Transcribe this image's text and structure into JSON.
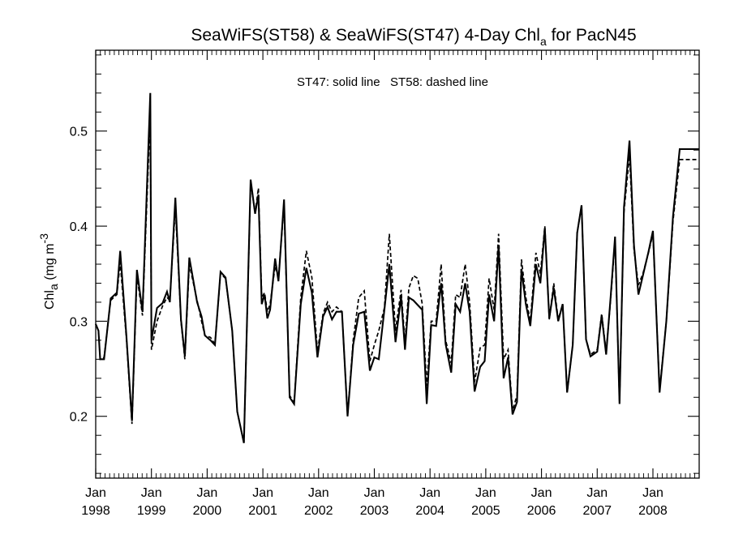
{
  "chart_data": {
    "type": "line",
    "title": {
      "main": "SeaWiFS(ST58) & SeaWiFS(ST47) 4-Day Chl",
      "sub": "a",
      "tail": " for PacN45"
    },
    "annotation": "ST47: solid line   ST58: dashed line",
    "ylabel": {
      "main": "Chl",
      "sub": "a",
      "unit_open": " (mg m",
      "sup": "-3",
      "unit_close": ")"
    },
    "xlim": [
      1998.0,
      2008.83
    ],
    "ylim": [
      0.135,
      0.585
    ],
    "y_ticks": [
      0.2,
      0.3,
      0.4,
      0.5
    ],
    "y_tick_labels": [
      "0.2",
      "0.3",
      "0.4",
      "0.5"
    ],
    "x_ticks": [
      {
        "value": 1998,
        "month": "Jan",
        "year": "1998"
      },
      {
        "value": 1999,
        "month": "Jan",
        "year": "1999"
      },
      {
        "value": 2000,
        "month": "Jan",
        "year": "2000"
      },
      {
        "value": 2001,
        "month": "Jan",
        "year": "2001"
      },
      {
        "value": 2002,
        "month": "Jan",
        "year": "2002"
      },
      {
        "value": 2003,
        "month": "Jan",
        "year": "2003"
      },
      {
        "value": 2004,
        "month": "Jan",
        "year": "2004"
      },
      {
        "value": 2005,
        "month": "Jan",
        "year": "2005"
      },
      {
        "value": 2006,
        "month": "Jan",
        "year": "2006"
      },
      {
        "value": 2007,
        "month": "Jan",
        "year": "2007"
      },
      {
        "value": 2008,
        "month": "Jan",
        "year": "2008"
      }
    ],
    "series": [
      {
        "name": "ST47",
        "style": "solid",
        "color": "#000000",
        "x": [
          1998.0,
          1998.05,
          1998.08,
          1998.15,
          1998.27,
          1998.38,
          1998.44,
          1998.55,
          1998.65,
          1998.74,
          1998.84,
          1998.98,
          1999.0,
          1999.1,
          1999.2,
          1999.28,
          1999.33,
          1999.43,
          1999.53,
          1999.6,
          1999.68,
          1999.82,
          1999.9,
          1999.96,
          2000.06,
          2000.14,
          2000.24,
          2000.33,
          2000.45,
          2000.54,
          2000.66,
          2000.78,
          2000.86,
          2000.92,
          2000.98,
          2001.03,
          2001.08,
          2001.13,
          2001.22,
          2001.28,
          2001.38,
          2001.48,
          2001.56,
          2001.68,
          2001.78,
          2001.88,
          2001.98,
          2002.08,
          2002.16,
          2002.24,
          2002.32,
          2002.42,
          2002.52,
          2002.62,
          2002.72,
          2002.82,
          2002.92,
          2003.0,
          2003.08,
          2003.18,
          2003.27,
          2003.38,
          2003.48,
          2003.55,
          2003.62,
          2003.7,
          2003.78,
          2003.86,
          2003.94,
          2004.02,
          2004.11,
          2004.2,
          2004.28,
          2004.38,
          2004.46,
          2004.54,
          2004.63,
          2004.71,
          2004.8,
          2004.9,
          2004.98,
          2005.06,
          2005.15,
          2005.23,
          2005.32,
          2005.4,
          2005.48,
          2005.56,
          2005.64,
          2005.72,
          2005.8,
          2005.9,
          2005.98,
          2006.06,
          2006.14,
          2006.22,
          2006.3,
          2006.38,
          2006.46,
          2006.56,
          2006.64,
          2006.72,
          2006.8,
          2006.88,
          2007.0,
          2007.08,
          2007.16,
          2007.24,
          2007.32,
          2007.4,
          2007.48,
          2007.58,
          2007.66,
          2007.74,
          2007.82,
          2007.92,
          2008.0,
          2008.12,
          2008.24,
          2008.36,
          2008.48,
          2008.6,
          2008.7,
          2008.83
        ],
        "y": [
          0.297,
          0.29,
          0.26,
          0.26,
          0.324,
          0.33,
          0.374,
          0.285,
          0.195,
          0.354,
          0.31,
          0.54,
          0.28,
          0.314,
          0.319,
          0.331,
          0.32,
          0.43,
          0.302,
          0.263,
          0.367,
          0.32,
          0.305,
          0.285,
          0.28,
          0.275,
          0.352,
          0.346,
          0.29,
          0.205,
          0.172,
          0.449,
          0.413,
          0.433,
          0.318,
          0.328,
          0.303,
          0.312,
          0.366,
          0.342,
          0.428,
          0.22,
          0.213,
          0.318,
          0.356,
          0.33,
          0.262,
          0.305,
          0.315,
          0.302,
          0.31,
          0.31,
          0.2,
          0.275,
          0.308,
          0.31,
          0.248,
          0.262,
          0.26,
          0.312,
          0.36,
          0.278,
          0.326,
          0.27,
          0.325,
          0.322,
          0.317,
          0.312,
          0.213,
          0.296,
          0.295,
          0.34,
          0.276,
          0.246,
          0.318,
          0.31,
          0.34,
          0.31,
          0.226,
          0.252,
          0.258,
          0.328,
          0.3,
          0.38,
          0.24,
          0.262,
          0.202,
          0.215,
          0.355,
          0.318,
          0.295,
          0.36,
          0.34,
          0.398,
          0.303,
          0.335,
          0.3,
          0.318,
          0.225,
          0.275,
          0.393,
          0.422,
          0.281,
          0.263,
          0.268,
          0.306,
          0.265,
          0.325,
          0.389,
          0.213,
          0.42,
          0.49,
          0.38,
          0.328,
          0.348,
          0.373,
          0.395,
          0.225,
          0.3,
          0.41,
          0.481,
          0.481,
          0.481,
          0.481
        ],
        "comment": ""
      },
      {
        "name": "ST58",
        "style": "dashed",
        "color": "#000000",
        "x": [
          1998.0,
          1998.05,
          1998.08,
          1998.15,
          1998.27,
          1998.38,
          1998.44,
          1998.55,
          1998.65,
          1998.74,
          1998.84,
          1998.98,
          1999.0,
          1999.1,
          1999.2,
          1999.28,
          1999.33,
          1999.43,
          1999.53,
          1999.6,
          1999.68,
          1999.82,
          1999.9,
          1999.96,
          2000.06,
          2000.14,
          2000.24,
          2000.33,
          2000.45,
          2000.54,
          2000.66,
          2000.78,
          2000.86,
          2000.92,
          2000.98,
          2001.03,
          2001.08,
          2001.13,
          2001.22,
          2001.28,
          2001.38,
          2001.48,
          2001.56,
          2001.68,
          2001.78,
          2001.88,
          2001.98,
          2002.08,
          2002.16,
          2002.24,
          2002.32,
          2002.42,
          2002.52,
          2002.62,
          2002.72,
          2002.82,
          2002.92,
          2003.0,
          2003.08,
          2003.18,
          2003.27,
          2003.38,
          2003.48,
          2003.55,
          2003.62,
          2003.7,
          2003.78,
          2003.86,
          2003.94,
          2004.02,
          2004.11,
          2004.2,
          2004.28,
          2004.38,
          2004.46,
          2004.54,
          2004.63,
          2004.71,
          2004.8,
          2004.9,
          2004.98,
          2005.06,
          2005.15,
          2005.23,
          2005.32,
          2005.4,
          2005.48,
          2005.56,
          2005.64,
          2005.72,
          2005.8,
          2005.9,
          2005.98,
          2006.06,
          2006.14,
          2006.22,
          2006.3,
          2006.38,
          2006.46,
          2006.56,
          2006.64,
          2006.72,
          2006.8,
          2006.88,
          2007.0,
          2007.08,
          2007.16,
          2007.24,
          2007.32,
          2007.4,
          2007.48,
          2007.58,
          2007.66,
          2007.74,
          2007.82,
          2007.92,
          2008.0,
          2008.12,
          2008.24,
          2008.36,
          2008.48,
          2008.6,
          2008.7,
          2008.83
        ],
        "y": [
          0.297,
          0.29,
          0.26,
          0.262,
          0.322,
          0.328,
          0.362,
          0.282,
          0.192,
          0.348,
          0.306,
          0.52,
          0.27,
          0.3,
          0.316,
          0.325,
          0.322,
          0.42,
          0.3,
          0.26,
          0.36,
          0.322,
          0.3,
          0.285,
          0.283,
          0.276,
          0.35,
          0.345,
          0.29,
          0.205,
          0.172,
          0.446,
          0.414,
          0.44,
          0.325,
          0.33,
          0.31,
          0.318,
          0.358,
          0.346,
          0.422,
          0.222,
          0.214,
          0.325,
          0.374,
          0.346,
          0.268,
          0.308,
          0.32,
          0.31,
          0.315,
          0.31,
          0.2,
          0.28,
          0.325,
          0.332,
          0.258,
          0.275,
          0.29,
          0.314,
          0.392,
          0.29,
          0.333,
          0.278,
          0.335,
          0.348,
          0.345,
          0.318,
          0.232,
          0.3,
          0.3,
          0.36,
          0.28,
          0.256,
          0.328,
          0.325,
          0.36,
          0.32,
          0.236,
          0.272,
          0.275,
          0.345,
          0.312,
          0.392,
          0.26,
          0.27,
          0.206,
          0.222,
          0.365,
          0.325,
          0.3,
          0.372,
          0.35,
          0.4,
          0.302,
          0.34,
          0.302,
          0.318,
          0.225,
          0.275,
          0.393,
          0.422,
          0.281,
          0.265,
          0.27,
          0.308,
          0.268,
          0.322,
          0.385,
          0.215,
          0.415,
          0.475,
          0.375,
          0.338,
          0.35,
          0.372,
          0.392,
          0.228,
          0.3,
          0.405,
          0.47,
          0.47,
          0.47,
          0.47
        ],
        "comment": ""
      }
    ]
  }
}
